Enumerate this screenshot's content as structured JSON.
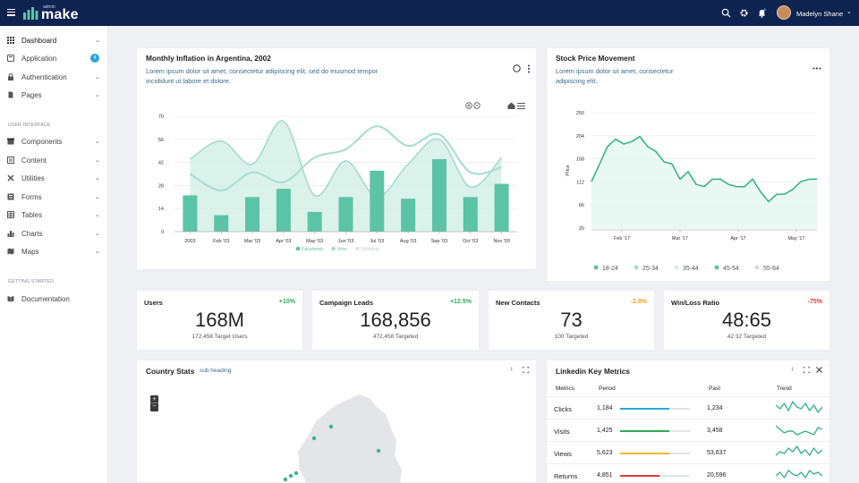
{
  "topbar": {
    "logo_small": "admin",
    "logo_big": "make",
    "user_name": "Madelyn Shane",
    "brand_color": "#0f2351",
    "accent_color": "#5cc4a6"
  },
  "sidebar": {
    "items": [
      {
        "label": "Dashboard",
        "icon": "grid-icon",
        "chev": "⌄"
      },
      {
        "label": "Application",
        "icon": "app-icon",
        "badge": "4"
      },
      {
        "label": "Authentication",
        "icon": "lock-icon",
        "chev": "⌄"
      },
      {
        "label": "Pages",
        "icon": "file-icon",
        "chev": "⌄"
      }
    ],
    "section1": "USER INTERFACE",
    "ui_items": [
      {
        "label": "Components",
        "icon": "box-icon",
        "chev": "⌄"
      },
      {
        "label": "Content",
        "icon": "content-icon",
        "chev": "⌄"
      },
      {
        "label": "Utilities",
        "icon": "tools-icon",
        "chev": "⌄"
      },
      {
        "label": "Forms",
        "icon": "form-icon",
        "chev": "⌄"
      },
      {
        "label": "Tables",
        "icon": "table-icon",
        "chev": "⌄"
      },
      {
        "label": "Charts",
        "icon": "chart-icon",
        "chev": "⌄"
      },
      {
        "label": "Maps",
        "icon": "map-icon",
        "chev": "⌄"
      }
    ],
    "section2": "GETTING STARTED",
    "doc_item": {
      "label": "Documentation",
      "icon": "book-icon"
    }
  },
  "inflation": {
    "title": "Monthly Inflation in Argentina, 2002",
    "sub1": "Lorem ipsum dolor sit amet, consectetur adipiscing elit, sed do eiusmod tempor",
    "sub2": "incididunt ut labore et dolore."
  },
  "stock": {
    "title": "Stock Price Movement",
    "sub1": "Lorem ipsum dolor sit amet, consectetur",
    "sub2": "adipiscing elit."
  },
  "stats": [
    {
      "label": "Users",
      "change": "+10%",
      "value": "168M",
      "target": "172,458 Target Users",
      "color": "#2eaa5a"
    },
    {
      "label": "Campaign Leads",
      "change": "+12.5%",
      "value": "168,856",
      "target": "472,458 Targeted",
      "color": "#2eaa5a"
    },
    {
      "label": "New Contacts",
      "change": "-2.8%",
      "value": "73",
      "target": "100 Targeted",
      "color": "#f0a330"
    },
    {
      "label": "Win/Loss Ratio",
      "change": "-75%",
      "value": "48:65",
      "target": "42:32 Targeted",
      "color": "#e03b3b"
    }
  ],
  "country": {
    "title": "Country Stats",
    "sub": "sub heading",
    "zoom_in": "+",
    "zoom_out": "−"
  },
  "linkedin": {
    "title": "Linkedin Key Metrics",
    "headers": [
      "Metrics",
      "Period",
      "Past",
      "Trend"
    ],
    "rows": [
      {
        "name": "Clicks",
        "period": "1,184",
        "past": "1,234",
        "pct": 0.7,
        "color": "#2aa7d8"
      },
      {
        "name": "Visits",
        "period": "1,425",
        "past": "3,458",
        "pct": 0.7,
        "color": "#2eaa5a"
      },
      {
        "name": "Views",
        "period": "5,623",
        "past": "53,637",
        "pct": 0.7,
        "color": "#f0b92d"
      },
      {
        "name": "Returns",
        "period": "4,851",
        "past": "20,596",
        "pct": 0.56,
        "color": "#e03b3b"
      }
    ]
  },
  "chart_data": [
    {
      "type": "bar",
      "title": "Monthly Inflation in Argentina, 2002",
      "categories": [
        "2003",
        "Feb '03",
        "Mar '03",
        "Apr '03",
        "May '03",
        "Jun '03",
        "Jul '03",
        "Aug '03",
        "Sep '03",
        "Oct '03",
        "Nov '03"
      ],
      "ylim": [
        0,
        70
      ],
      "yticks": [
        "0",
        "14",
        "28",
        "42",
        "56",
        "70"
      ],
      "series": [
        {
          "name": "Facebook",
          "type": "bar",
          "values": [
            22,
            10,
            21,
            26,
            12,
            21,
            37,
            20,
            44,
            21,
            29
          ]
        },
        {
          "name": "Vine",
          "type": "area",
          "values": [
            44,
            55,
            41,
            67,
            22,
            43,
            21,
            41,
            56,
            27,
            45
          ]
        },
        {
          "name": "Dribbble",
          "type": "line",
          "values": [
            35,
            25,
            36,
            30,
            45,
            50,
            64,
            52,
            59,
            36,
            39
          ]
        }
      ],
      "legend": "bottom"
    },
    {
      "type": "line",
      "title": "Stock Price Movement",
      "ylabel": "Price",
      "ylim": [
        20,
        250
      ],
      "yticks": [
        "20",
        "66",
        "112",
        "158",
        "204",
        "250"
      ],
      "xticks": [
        "Feb '17",
        "Mar '17",
        "Apr '17",
        "May '17"
      ],
      "values": [
        110,
        150,
        180,
        200,
        185,
        195,
        200,
        185,
        170,
        155,
        145,
        120,
        130,
        110,
        100,
        120,
        115,
        110,
        100,
        105,
        115,
        95,
        70,
        90,
        85,
        100,
        110,
        120,
        115
      ],
      "legend_entries": [
        "18-24",
        "25-34",
        "35-44",
        "45-54",
        "55-64"
      ],
      "legend": "bottom"
    }
  ]
}
